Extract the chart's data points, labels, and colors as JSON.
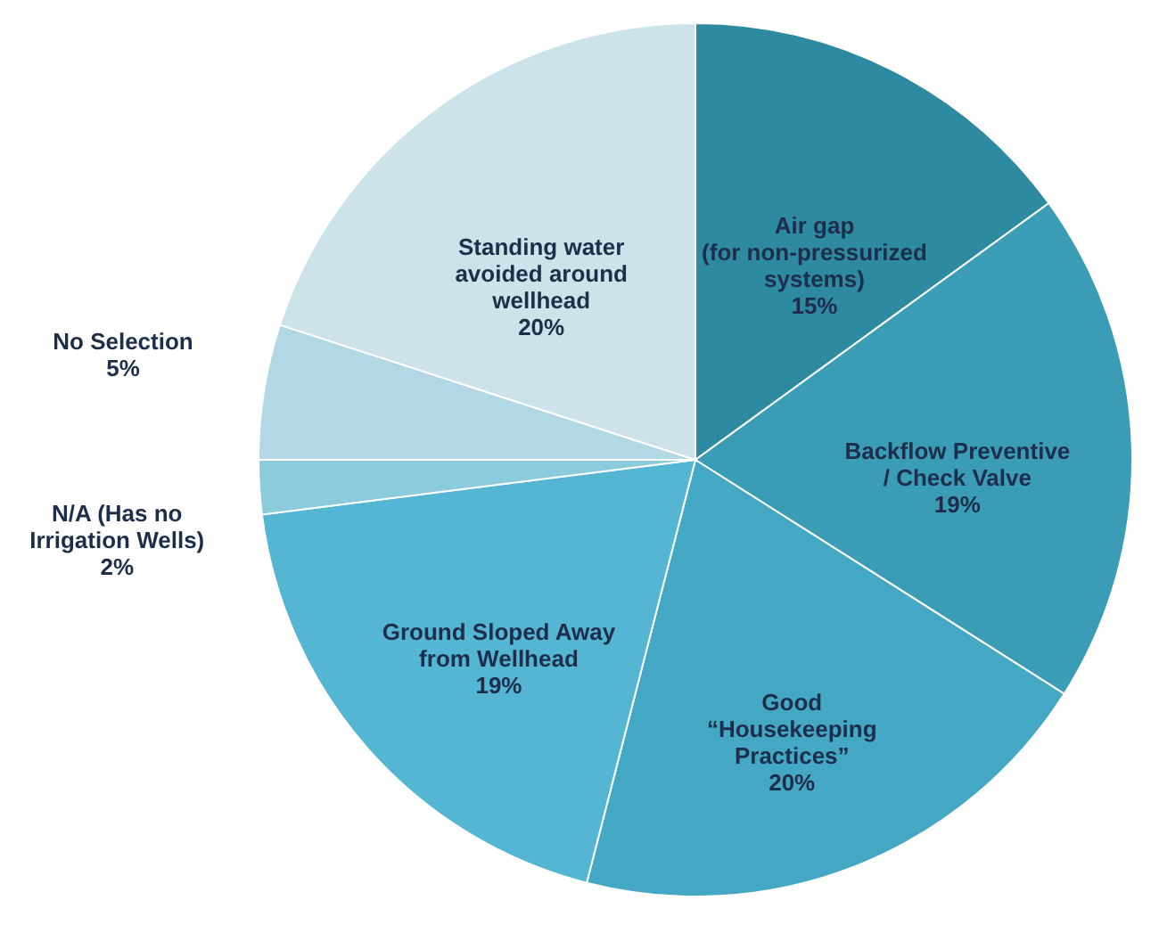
{
  "chart_data": {
    "type": "pie",
    "categories": [
      "Air gap\n(for non-pressurized\nsystems)",
      "Backflow Preventive\n/ Check Valve",
      "Good\n“Housekeeping\nPractices”",
      "Ground Sloped Away\nfrom Wellhead",
      "N/A (Has no\nIrrigation Wells)",
      "No Selection",
      "Standing water\navoided around\nwellhead"
    ],
    "values": [
      15,
      19,
      20,
      19,
      2,
      5,
      20
    ],
    "value_labels": [
      "15%",
      "19%",
      "20%",
      "19%",
      "2%",
      "5%",
      "20%"
    ],
    "colors": [
      "#2e8aa0",
      "#3a9cb5",
      "#44a8c4",
      "#55b6d4",
      "#8ccbdc",
      "#b1d8e4",
      "#cde3ea"
    ]
  }
}
